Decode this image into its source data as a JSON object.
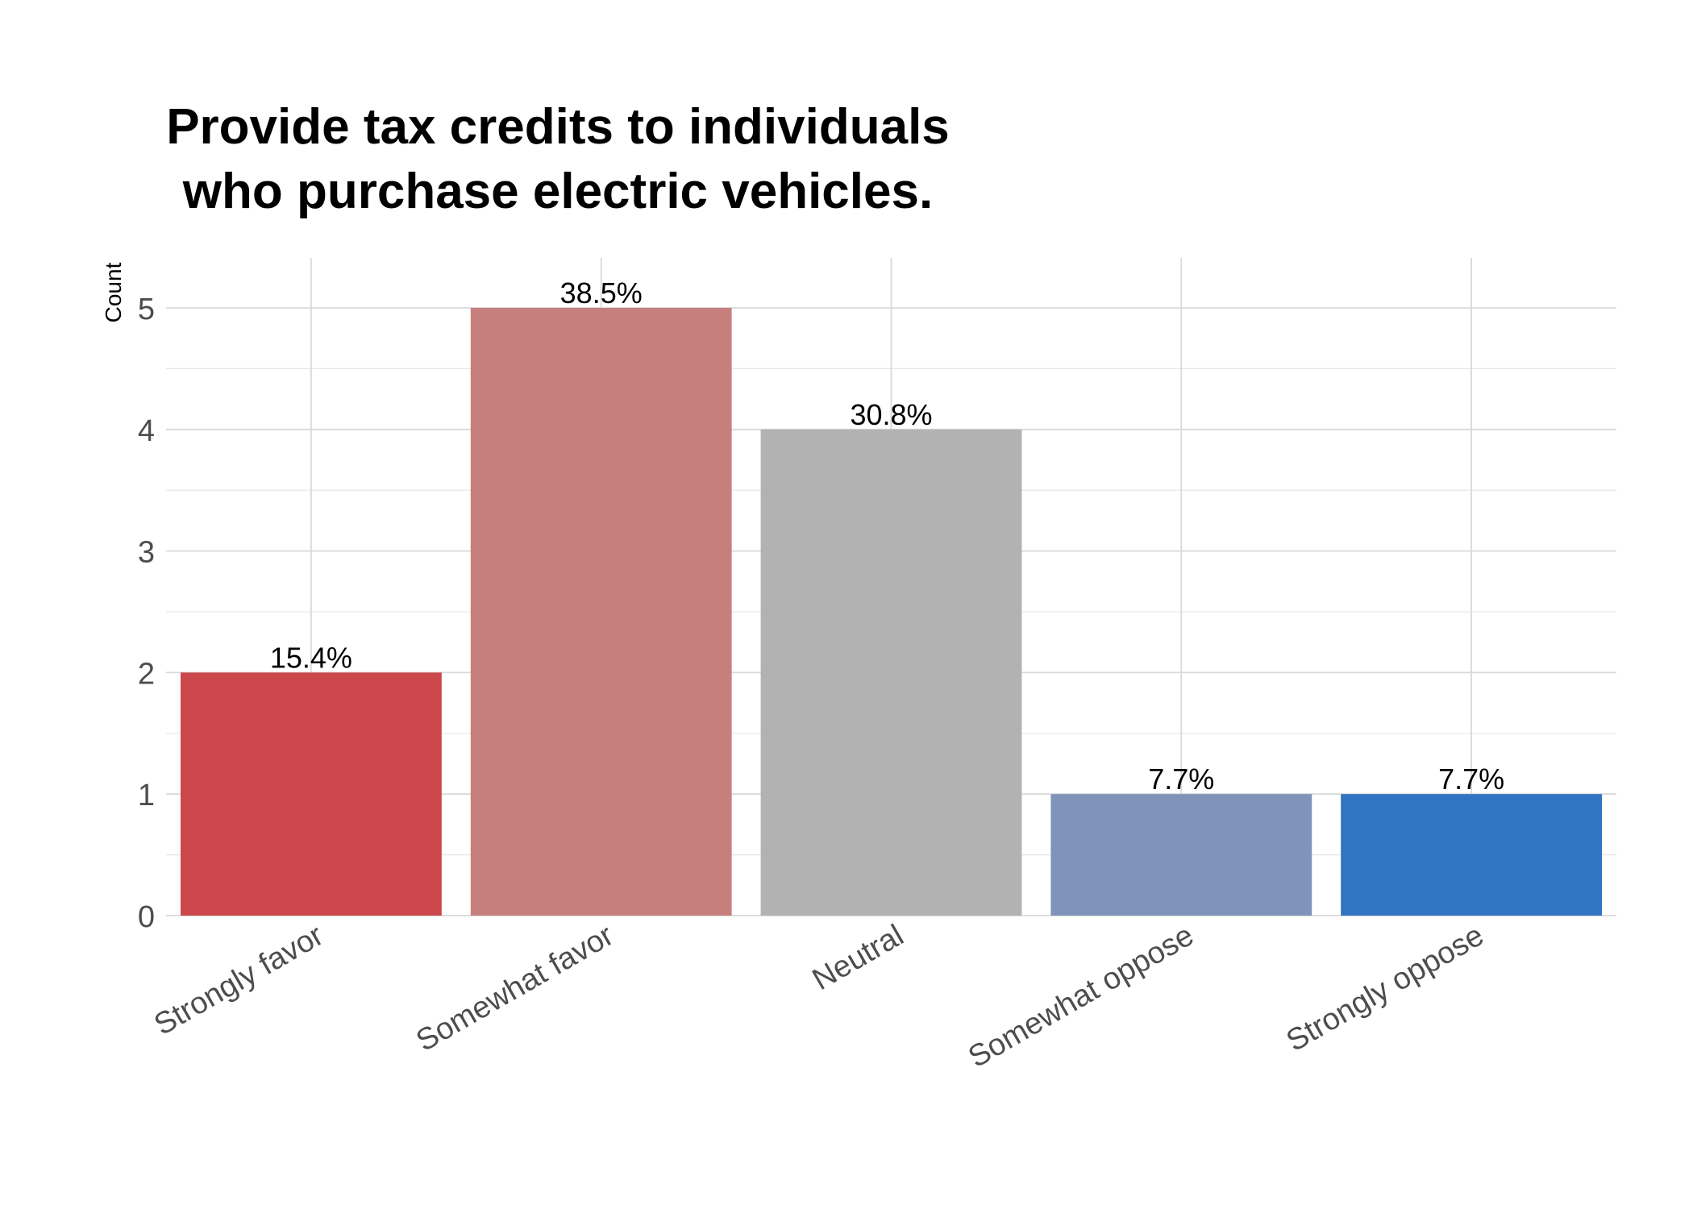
{
  "chart_data": {
    "type": "bar",
    "title": [
      "Provide tax credits to individuals",
      "who purchase electric vehicles."
    ],
    "xlabel": "",
    "ylabel": "Count",
    "categories": [
      "Strongly favor",
      "Somewhat favor",
      "Neutral",
      "Somewhat oppose",
      "Strongly oppose"
    ],
    "values": [
      2,
      5,
      4,
      1,
      1
    ],
    "labels": [
      "15.4%",
      "38.5%",
      "30.8%",
      "7.7%",
      "7.7%"
    ],
    "colors": [
      "#cc474b",
      "#c77f7d",
      "#b2b2b2",
      "#8093ba",
      "#3174c1"
    ],
    "ylim": [
      0,
      5.4
    ],
    "yticks": [
      0,
      1,
      2,
      3,
      4,
      5
    ],
    "grid": true,
    "legend": "none"
  }
}
